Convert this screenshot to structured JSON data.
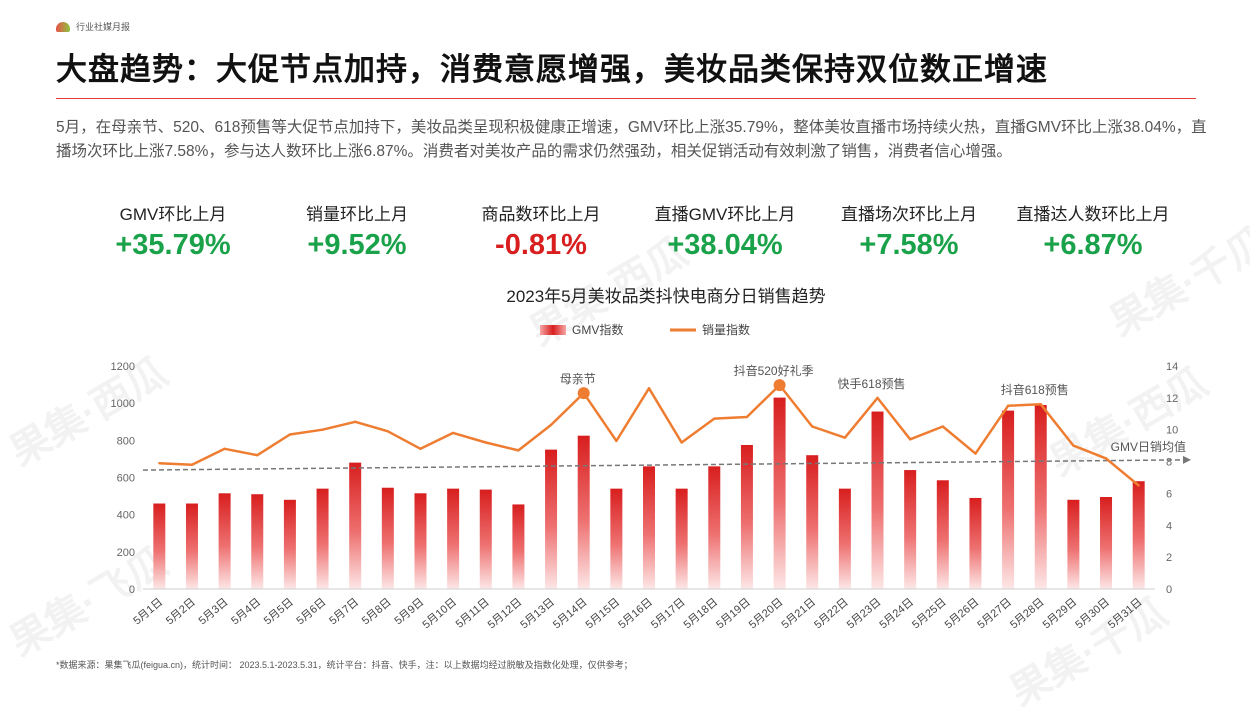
{
  "header": {
    "brand_label": "行业社媒月报",
    "title": "大盘趋势：大促节点加持，消费意愿增强，美妆品类保持双位数正增速",
    "description": "5月，在母亲节、520、618预售等大促节点加持下，美妆品类呈现积极健康正增速，GMV环比上涨35.79%，整体美妆直播市场持续火热，直播GMV环比上涨38.04%，直播场次环比上涨7.58%，参与达人数环比上涨6.87%。消费者对美妆产品的需求仍然强劲，相关促销活动有效刺激了销售，消费者信心增强。"
  },
  "kpis": [
    {
      "label": "GMV环比上月",
      "value": "+35.79%",
      "color": "#1aa24a"
    },
    {
      "label": "销量环比上月",
      "value": "+9.52%",
      "color": "#1aa24a"
    },
    {
      "label": "商品数环比上月",
      "value": "-0.81%",
      "color": "#d81e1e"
    },
    {
      "label": "直播GMV环比上月",
      "value": "+38.04%",
      "color": "#1aa24a"
    },
    {
      "label": "直播场次环比上月",
      "value": "+7.58%",
      "color": "#1aa24a"
    },
    {
      "label": "直播达人数环比上月",
      "value": "+6.87%",
      "color": "#1aa24a"
    }
  ],
  "watermarks": [
    "果集·千瓜",
    "果集·西瓜",
    "果集·飞瓜"
  ],
  "chart_data": {
    "type": "bar",
    "title": "2023年5月美妆品类抖快电商分日销售趋势",
    "categories": [
      "5月1日",
      "5月2日",
      "5月3日",
      "5月4日",
      "5月5日",
      "5月6日",
      "5月7日",
      "5月8日",
      "5月9日",
      "5月10日",
      "5月11日",
      "5月12日",
      "5月13日",
      "5月14日",
      "5月15日",
      "5月16日",
      "5月17日",
      "5月18日",
      "5月19日",
      "5月20日",
      "5月21日",
      "5月22日",
      "5月23日",
      "5月24日",
      "5月25日",
      "5月26日",
      "5月27日",
      "5月28日",
      "5月29日",
      "5月30日",
      "5月31日"
    ],
    "series": [
      {
        "name": "GMV指数",
        "type": "bar",
        "axis": "left",
        "color": "#d81e1e",
        "values": [
          460,
          460,
          515,
          510,
          480,
          540,
          680,
          545,
          515,
          540,
          535,
          455,
          750,
          825,
          540,
          660,
          540,
          660,
          775,
          1030,
          720,
          540,
          955,
          640,
          585,
          490,
          960,
          990,
          480,
          495,
          580
        ]
      },
      {
        "name": "销量指数",
        "type": "line",
        "axis": "right",
        "color": "#ee7d31",
        "values": [
          7.9,
          7.8,
          8.8,
          8.4,
          9.7,
          10.0,
          10.5,
          9.9,
          8.8,
          9.8,
          9.2,
          8.7,
          10.3,
          12.3,
          9.3,
          12.6,
          9.2,
          10.7,
          10.8,
          12.8,
          10.2,
          9.5,
          12.0,
          9.4,
          10.2,
          8.5,
          11.5,
          11.6,
          9.0,
          8.2,
          6.5
        ]
      }
    ],
    "reference_line": {
      "label": "GMV日销均值",
      "start": 640,
      "end": 695,
      "color": "#777777"
    },
    "annotations": [
      {
        "label": "母亲节",
        "category_index": 13,
        "value": 12.3
      },
      {
        "label": "抖音520好礼季",
        "category_index": 19,
        "value": 12.8
      },
      {
        "label": "快手618预售",
        "category_index": 22,
        "value": 12.0
      },
      {
        "label": "抖音618预售",
        "category_index": 27,
        "value": 11.6
      }
    ],
    "highlight_points": [
      13,
      19
    ],
    "y_left": {
      "min": 0,
      "max": 1200,
      "ticks": [
        0,
        200,
        400,
        600,
        800,
        1000,
        1200
      ]
    },
    "y_right": {
      "min": 0,
      "max": 14,
      "ticks": [
        0,
        2,
        4,
        6,
        8,
        10,
        12,
        14
      ]
    },
    "legend_position": "top-center",
    "grid": false
  },
  "footnote": "*数据来源：果集飞瓜(feigua.cn)，统计时间： 2023.5.1-2023.5.31，统计平台：抖音、快手，注：以上数据均经过脱敏及指数化处理，仅供参考；"
}
